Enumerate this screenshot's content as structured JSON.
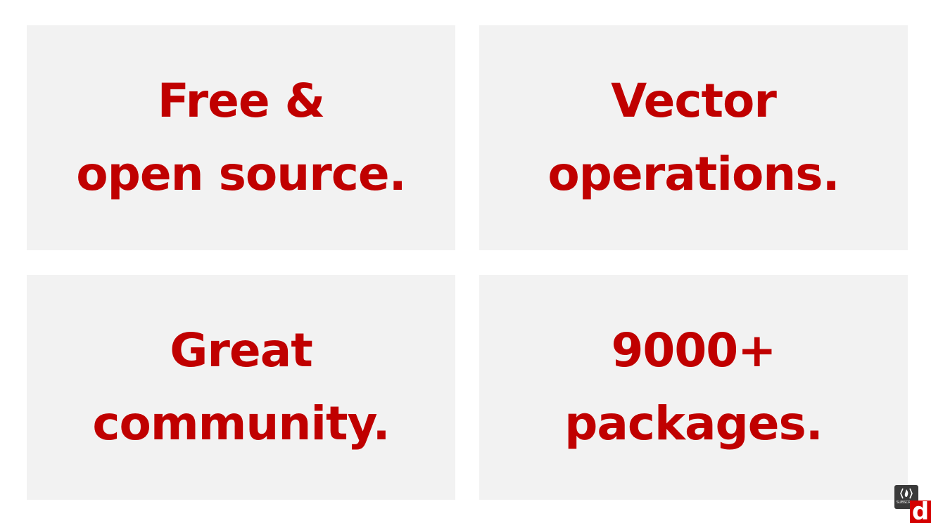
{
  "colors": {
    "text": "#c00000",
    "tile_background": "#f2f2f2",
    "page_background": "#ffffff"
  },
  "tiles": [
    {
      "line1": "Free &",
      "line2": "open source."
    },
    {
      "line1": "Vector",
      "line2": "operations."
    },
    {
      "line1": "Great",
      "line2": "community."
    },
    {
      "line1": "9000+",
      "line2": "packages."
    }
  ],
  "badge": {
    "icon": "flame-icon",
    "text": "SUBSCRIBE"
  },
  "logo": {
    "text": "d"
  }
}
